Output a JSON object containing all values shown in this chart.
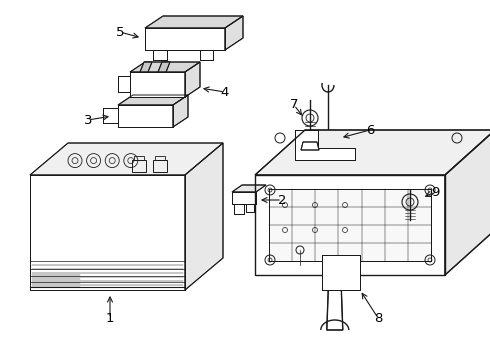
{
  "background_color": "#ffffff",
  "line_color": "#1a1a1a",
  "text_color": "#000000",
  "figsize": [
    4.9,
    3.6
  ],
  "dpi": 100,
  "lw": 0.7
}
